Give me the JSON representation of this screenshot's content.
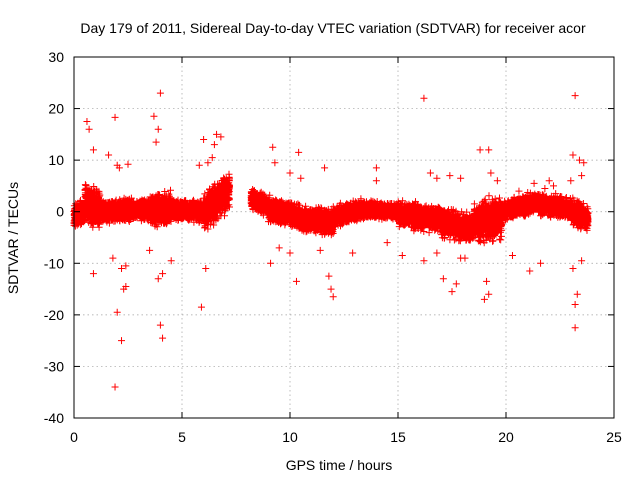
{
  "chart_data": {
    "type": "scatter",
    "title": "Day 179 of 2011, Sidereal Day-to-day VTEC variation (SDTVAR) for receiver acor",
    "xlabel": "GPS time / hours",
    "ylabel": "SDTVAR / TECUs",
    "xlim": [
      0,
      25
    ],
    "ylim": [
      -40,
      30
    ],
    "xticks": [
      0,
      5,
      10,
      15,
      20,
      25
    ],
    "yticks": [
      -40,
      -30,
      -20,
      -10,
      0,
      10,
      20,
      30
    ],
    "grid": true,
    "marker": "+",
    "series_color": "#ff0000",
    "series": [
      {
        "name": "SDTVAR",
        "outliers": [
          [
            0.6,
            17.5
          ],
          [
            0.7,
            16.0
          ],
          [
            0.9,
            12.0
          ],
          [
            1.6,
            11.0
          ],
          [
            1.9,
            18.3
          ],
          [
            2.0,
            9.0
          ],
          [
            2.1,
            8.5
          ],
          [
            2.5,
            9.2
          ],
          [
            1.9,
            -34.0
          ],
          [
            2.2,
            -25.0
          ],
          [
            2.0,
            -19.5
          ],
          [
            2.3,
            -15.0
          ],
          [
            2.4,
            -14.5
          ],
          [
            2.2,
            -11.0
          ],
          [
            2.4,
            -10.5
          ],
          [
            1.8,
            -9.0
          ],
          [
            0.9,
            -12.0
          ],
          [
            3.7,
            18.5
          ],
          [
            4.0,
            23.0
          ],
          [
            3.9,
            16.0
          ],
          [
            3.8,
            13.5
          ],
          [
            4.0,
            -22.0
          ],
          [
            4.1,
            -24.5
          ],
          [
            3.9,
            -13.0
          ],
          [
            4.1,
            -12.0
          ],
          [
            4.5,
            -9.5
          ],
          [
            3.5,
            -7.5
          ],
          [
            5.9,
            -18.5
          ],
          [
            6.1,
            -11.0
          ],
          [
            6.0,
            14.0
          ],
          [
            6.5,
            13.0
          ],
          [
            6.6,
            15.0
          ],
          [
            6.8,
            14.5
          ],
          [
            5.8,
            9.0
          ],
          [
            6.2,
            9.5
          ],
          [
            6.4,
            10.5
          ],
          [
            9.2,
            12.5
          ],
          [
            9.3,
            9.5
          ],
          [
            9.1,
            -10.0
          ],
          [
            9.5,
            -7.0
          ],
          [
            10.0,
            -8.0
          ],
          [
            10.3,
            -13.5
          ],
          [
            10.4,
            11.5
          ],
          [
            10.0,
            7.5
          ],
          [
            10.5,
            6.5
          ],
          [
            11.6,
            8.5
          ],
          [
            11.4,
            -7.5
          ],
          [
            11.8,
            -12.5
          ],
          [
            11.9,
            -15.0
          ],
          [
            12.0,
            -16.5
          ],
          [
            12.9,
            -8.0
          ],
          [
            14.0,
            8.5
          ],
          [
            14.0,
            6.0
          ],
          [
            14.5,
            -6.0
          ],
          [
            15.2,
            -8.5
          ],
          [
            16.2,
            22.0
          ],
          [
            16.5,
            7.5
          ],
          [
            16.8,
            6.5
          ],
          [
            16.2,
            -9.5
          ],
          [
            16.8,
            -8.0
          ],
          [
            17.1,
            -13.0
          ],
          [
            17.5,
            -15.5
          ],
          [
            17.7,
            -14.0
          ],
          [
            17.9,
            -9.0
          ],
          [
            17.4,
            7.0
          ],
          [
            17.9,
            6.5
          ],
          [
            18.1,
            -9.0
          ],
          [
            18.8,
            12.0
          ],
          [
            19.2,
            12.0
          ],
          [
            19.0,
            -17.0
          ],
          [
            19.2,
            -16.0
          ],
          [
            19.1,
            -13.5
          ],
          [
            19.3,
            7.5
          ],
          [
            19.6,
            6.0
          ],
          [
            20.3,
            -8.5
          ],
          [
            20.6,
            4.0
          ],
          [
            21.1,
            -11.5
          ],
          [
            21.3,
            5.5
          ],
          [
            21.6,
            -10.0
          ],
          [
            21.8,
            4.5
          ],
          [
            22.0,
            6.0
          ],
          [
            22.2,
            5.0
          ],
          [
            22.3,
            3.5
          ],
          [
            23.2,
            22.5
          ],
          [
            23.1,
            11.0
          ],
          [
            23.4,
            10.0
          ],
          [
            23.5,
            7.0
          ],
          [
            23.3,
            -16.0
          ],
          [
            23.2,
            -18.0
          ],
          [
            23.2,
            -22.5
          ],
          [
            23.1,
            -11.0
          ],
          [
            23.5,
            -9.5
          ],
          [
            23.6,
            9.5
          ],
          [
            23.0,
            6.0
          ]
        ],
        "dense_segments": [
          {
            "x": [
              0.0,
              0.5
            ],
            "y_center": [
              -1.0,
              0.0
            ],
            "spread": 3.0
          },
          {
            "x": [
              0.5,
              1.2
            ],
            "y_center": [
              1.5,
              0.5
            ],
            "spread": 5.0
          },
          {
            "x": [
              1.2,
              3.5
            ],
            "y_center": [
              0.0,
              0.5
            ],
            "spread": 2.5
          },
          {
            "x": [
              3.5,
              4.5
            ],
            "y_center": [
              0.5,
              0.5
            ],
            "spread": 4.0
          },
          {
            "x": [
              4.5,
              6.0
            ],
            "y_center": [
              0.5,
              0.0
            ],
            "spread": 2.5
          },
          {
            "x": [
              6.0,
              7.2
            ],
            "y_center": [
              0.0,
              4.0
            ],
            "spread": 4.5
          },
          {
            "x": [
              8.2,
              9.0
            ],
            "y_center": [
              2.5,
              1.0
            ],
            "spread": 2.5
          },
          {
            "x": [
              9.0,
              10.5
            ],
            "y_center": [
              0.5,
              -1.0
            ],
            "spread": 3.0
          },
          {
            "x": [
              10.5,
              12.0
            ],
            "y_center": [
              -1.5,
              -2.0
            ],
            "spread": 3.0
          },
          {
            "x": [
              12.0,
              13.5
            ],
            "y_center": [
              -1.0,
              0.5
            ],
            "spread": 2.5
          },
          {
            "x": [
              13.5,
              15.0
            ],
            "y_center": [
              0.5,
              0.0
            ],
            "spread": 2.0
          },
          {
            "x": [
              15.0,
              17.0
            ],
            "y_center": [
              -0.5,
              -1.5
            ],
            "spread": 3.0
          },
          {
            "x": [
              17.0,
              18.5
            ],
            "y_center": [
              -2.0,
              -3.5
            ],
            "spread": 3.5
          },
          {
            "x": [
              18.5,
              19.8
            ],
            "y_center": [
              -2.5,
              -1.0
            ],
            "spread": 5.0
          },
          {
            "x": [
              19.8,
              21.5
            ],
            "y_center": [
              0.0,
              2.0
            ],
            "spread": 2.5
          },
          {
            "x": [
              21.5,
              23.0
            ],
            "y_center": [
              1.5,
              0.5
            ],
            "spread": 2.5
          },
          {
            "x": [
              23.0,
              23.8
            ],
            "y_center": [
              0.0,
              -1.5
            ],
            "spread": 3.0
          }
        ],
        "gaps": [
          [
            7.2,
            8.2
          ]
        ]
      }
    ]
  }
}
